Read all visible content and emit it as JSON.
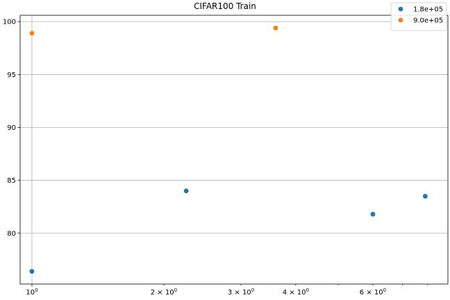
{
  "chart_data": {
    "type": "scatter",
    "title": "CIFAR100 Train",
    "xlabel": "",
    "ylabel": "",
    "xscale": "log",
    "xlim": [
      0.94,
      8.9
    ],
    "ylim": [
      75.2,
      100.6
    ],
    "grid": true,
    "legend_position": "top-right",
    "x_ticks": [
      {
        "value": 1,
        "label": "10",
        "sup": "0"
      },
      {
        "value": 2,
        "label": "2 × 10",
        "sup": "0"
      },
      {
        "value": 3,
        "label": "3 × 10",
        "sup": "0"
      },
      {
        "value": 4,
        "label": "4 × 10",
        "sup": "0"
      },
      {
        "value": 6,
        "label": "6 × 10",
        "sup": "0"
      }
    ],
    "x_minor_ticks": [
      5,
      7,
      8
    ],
    "y_ticks": [
      {
        "value": 80,
        "label": "80"
      },
      {
        "value": 85,
        "label": "85"
      },
      {
        "value": 90,
        "label": "90"
      },
      {
        "value": 95,
        "label": "95"
      },
      {
        "value": 100,
        "label": "100"
      }
    ],
    "series": [
      {
        "name": "1.8e+05",
        "color": "#1f77b4",
        "points": [
          {
            "x": 1.0,
            "y": 76.4
          },
          {
            "x": 2.25,
            "y": 84.0
          },
          {
            "x": 6.0,
            "y": 81.8
          },
          {
            "x": 7.9,
            "y": 83.5
          }
        ]
      },
      {
        "name": "9.0e+05",
        "color": "#ff7f0e",
        "points": [
          {
            "x": 1.0,
            "y": 98.9
          },
          {
            "x": 3.6,
            "y": 99.4
          }
        ]
      }
    ]
  }
}
